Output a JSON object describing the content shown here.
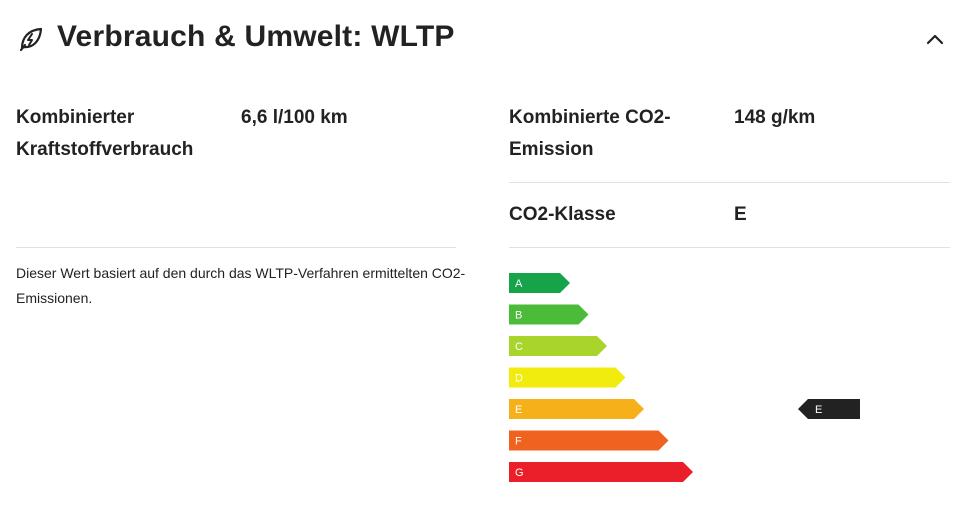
{
  "header": {
    "title": "Verbrauch & Umwelt: WLTP",
    "icon": "eco-leaf-bolt-icon",
    "toggle_icon": "chevron-up-icon"
  },
  "left": {
    "label": "Kombinierter Kraftstoffverbrauch",
    "label_line1": "Kombinierter",
    "label_line2": "Kraftstoffverbrauch",
    "value": "6,6 l/100 km",
    "note": "Dieser Wert basiert auf den durch das WLTP-Verfahren ermittelten CO2-Emissionen."
  },
  "right": {
    "emission_label_line1": "Kombinierte CO2-",
    "emission_label_line2": "Emission",
    "emission_value": "148 g/km",
    "class_label": "CO2-Klasse",
    "class_value": "E"
  },
  "co2_scale": {
    "classes": [
      {
        "label": "A",
        "color": "#16a34a"
      },
      {
        "label": "B",
        "color": "#4cbb3a"
      },
      {
        "label": "C",
        "color": "#a8d42b"
      },
      {
        "label": "D",
        "color": "#f2ec0e"
      },
      {
        "label": "E",
        "color": "#f6b01a"
      },
      {
        "label": "F",
        "color": "#f0621f"
      },
      {
        "label": "G",
        "color": "#ea1f2a"
      }
    ],
    "current": "E",
    "indicator_color": "#222222"
  }
}
